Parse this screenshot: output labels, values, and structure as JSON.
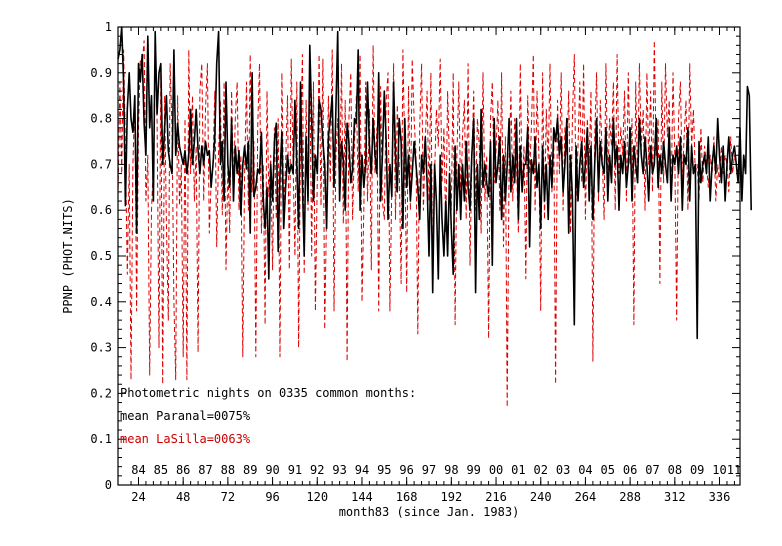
{
  "chart_data": {
    "type": "line",
    "xlabel": "month83 (since Jan. 1983)",
    "ylabel": "PPNP (PHOT.NITS)",
    "xlim": [
      13,
      347
    ],
    "ylim": [
      0,
      1
    ],
    "x_ticks": [
      "24",
      "48",
      "72",
      "96",
      "120",
      "144",
      "168",
      "192",
      "216",
      "240",
      "264",
      "288",
      "312",
      "336"
    ],
    "y_ticks": [
      "0",
      "0.1",
      "0.2",
      "0.3",
      "0.4",
      "0.5",
      "0.6",
      "0.7",
      "0.8",
      "0.9",
      "1"
    ],
    "year_labels": [
      {
        "label": "84",
        "x": 24
      },
      {
        "label": "85",
        "x": 36
      },
      {
        "label": "86",
        "x": 48
      },
      {
        "label": "87",
        "x": 60
      },
      {
        "label": "88",
        "x": 72
      },
      {
        "label": "89",
        "x": 84
      },
      {
        "label": "90",
        "x": 96
      },
      {
        "label": "91",
        "x": 108
      },
      {
        "label": "92",
        "x": 120
      },
      {
        "label": "93",
        "x": 132
      },
      {
        "label": "94",
        "x": 144
      },
      {
        "label": "95",
        "x": 156
      },
      {
        "label": "96",
        "x": 168
      },
      {
        "label": "97",
        "x": 180
      },
      {
        "label": "98",
        "x": 192
      },
      {
        "label": "99",
        "x": 204
      },
      {
        "label": "00",
        "x": 216
      },
      {
        "label": "01",
        "x": 228
      },
      {
        "label": "02",
        "x": 240
      },
      {
        "label": "03",
        "x": 252
      },
      {
        "label": "04",
        "x": 264
      },
      {
        "label": "05",
        "x": 276
      },
      {
        "label": "06",
        "x": 288
      },
      {
        "label": "07",
        "x": 300
      },
      {
        "label": "08",
        "x": 312
      },
      {
        "label": "09",
        "x": 324
      },
      {
        "label": "10",
        "x": 336
      },
      {
        "label": "11",
        "x": 348
      }
    ],
    "annotations": [
      {
        "text": "Photometric nights on 0335 common months:",
        "color": "#000000"
      },
      {
        "text": "mean Paranal=0075%",
        "color": "#000000"
      },
      {
        "text": "mean LaSilla=0063%",
        "color": "#cc0000"
      }
    ],
    "series": [
      {
        "style": "solid",
        "color": "#000000",
        "x_start": 13,
        "x_step": 1,
        "values": [
          0.93,
          0.95,
          1.0,
          0.88,
          0.61,
          0.82,
          0.9,
          0.8,
          0.77,
          0.85,
          0.55,
          0.92,
          0.88,
          0.94,
          0.79,
          0.72,
          0.98,
          0.78,
          0.85,
          0.62,
          0.99,
          0.81,
          0.9,
          0.92,
          0.7,
          0.78,
          0.85,
          0.73,
          0.7,
          0.68,
          0.95,
          0.72,
          0.79,
          0.74,
          0.72,
          0.7,
          0.73,
          0.68,
          0.72,
          0.82,
          0.7,
          0.75,
          0.82,
          0.73,
          0.68,
          0.74,
          0.7,
          0.75,
          0.72,
          0.73,
          0.65,
          0.7,
          0.76,
          0.92,
          0.99,
          0.7,
          0.75,
          0.62,
          0.88,
          0.7,
          0.65,
          0.8,
          0.62,
          0.74,
          0.68,
          0.73,
          0.59,
          0.7,
          0.74,
          0.69,
          0.75,
          0.55,
          0.9,
          0.63,
          0.65,
          0.69,
          0.68,
          0.77,
          0.62,
          0.56,
          0.65,
          0.45,
          0.7,
          0.62,
          0.75,
          0.79,
          0.51,
          0.68,
          0.77,
          0.56,
          0.65,
          0.72,
          0.68,
          0.7,
          0.68,
          0.84,
          0.7,
          0.56,
          0.88,
          0.66,
          0.5,
          0.76,
          0.62,
          0.96,
          0.8,
          0.62,
          0.72,
          0.68,
          0.84,
          0.82,
          0.75,
          0.7,
          0.56,
          0.76,
          0.8,
          0.85,
          0.65,
          0.82,
          0.99,
          0.62,
          0.75,
          0.71,
          0.6,
          0.79,
          0.75,
          0.66,
          0.69,
          0.8,
          0.79,
          0.95,
          0.6,
          0.72,
          0.65,
          0.7,
          0.88,
          0.74,
          0.68,
          0.8,
          0.72,
          0.68,
          0.9,
          0.62,
          0.72,
          0.86,
          0.75,
          0.58,
          0.7,
          0.63,
          0.88,
          0.72,
          0.64,
          0.8,
          0.75,
          0.56,
          0.8,
          0.65,
          0.72,
          0.62,
          0.68,
          0.75,
          0.7,
          0.65,
          0.58,
          0.72,
          0.68,
          0.76,
          0.66,
          0.5,
          0.7,
          0.42,
          0.7,
          0.62,
          0.45,
          0.72,
          0.58,
          0.5,
          0.62,
          0.5,
          0.68,
          0.56,
          0.46,
          0.74,
          0.6,
          0.7,
          0.58,
          0.7,
          0.62,
          0.75,
          0.65,
          0.6,
          0.72,
          0.8,
          0.42,
          0.7,
          0.58,
          0.82,
          0.65,
          0.7,
          0.66,
          0.63,
          0.75,
          0.48,
          0.8,
          0.66,
          0.7,
          0.76,
          0.58,
          0.72,
          0.62,
          0.7,
          0.8,
          0.64,
          0.72,
          0.66,
          0.8,
          0.58,
          0.74,
          0.64,
          0.7,
          0.7,
          0.78,
          0.52,
          0.71,
          0.68,
          0.76,
          0.65,
          0.7,
          0.56,
          0.74,
          0.62,
          0.7,
          0.58,
          0.72,
          0.65,
          0.78,
          0.75,
          0.8,
          0.72,
          0.76,
          0.64,
          0.7,
          0.8,
          0.55,
          0.72,
          0.63,
          0.35,
          0.74,
          0.62,
          0.7,
          0.75,
          0.65,
          0.7,
          0.78,
          0.62,
          0.74,
          0.58,
          0.7,
          0.8,
          0.64,
          0.75,
          0.7,
          0.68,
          0.78,
          0.62,
          0.72,
          0.66,
          0.8,
          0.7,
          0.74,
          0.6,
          0.72,
          0.68,
          0.75,
          0.65,
          0.7,
          0.78,
          0.62,
          0.74,
          0.7,
          0.66,
          0.8,
          0.72,
          0.68,
          0.76,
          0.7,
          0.62,
          0.74,
          0.68,
          0.7,
          0.8,
          0.65,
          0.72,
          0.68,
          0.75,
          0.7,
          0.66,
          0.78,
          0.62,
          0.72,
          0.7,
          0.74,
          0.68,
          0.76,
          0.6,
          0.72,
          0.7,
          0.78,
          0.62,
          0.74,
          0.68,
          0.7,
          0.32,
          0.75,
          0.66,
          0.7,
          0.72,
          0.68,
          0.76,
          0.62,
          0.7,
          0.74,
          0.68,
          0.8,
          0.72,
          0.66,
          0.74,
          0.62,
          0.7,
          0.76,
          0.68,
          0.72,
          0.74,
          0.7,
          0.66,
          0.78,
          0.62,
          0.72,
          0.68,
          0.87,
          0.85,
          0.6
        ]
      },
      {
        "style": "dashed",
        "color": "#dd0000",
        "x_start": 13,
        "x_step": 1,
        "values": [
          0.63,
          0.88,
          0.68,
          0.95,
          0.74,
          0.46,
          0.7,
          0.23,
          0.7,
          0.85,
          0.38,
          0.78,
          0.93,
          0.92,
          0.97,
          0.62,
          0.72,
          0.24,
          0.6,
          0.7,
          0.96,
          0.79,
          0.3,
          0.9,
          0.22,
          0.85,
          0.57,
          0.36,
          0.92,
          0.78,
          0.4,
          0.23,
          0.85,
          0.61,
          0.7,
          0.28,
          0.8,
          0.23,
          0.95,
          0.68,
          0.85,
          0.62,
          0.74,
          0.29,
          0.86,
          0.92,
          0.62,
          0.82,
          0.92,
          0.55,
          0.66,
          0.7,
          0.86,
          0.52,
          0.73,
          0.84,
          0.59,
          0.88,
          0.47,
          0.7,
          0.55,
          0.86,
          0.65,
          0.8,
          0.88,
          0.6,
          0.72,
          0.28,
          0.68,
          0.88,
          0.6,
          0.94,
          0.64,
          0.75,
          0.28,
          0.78,
          0.92,
          0.55,
          0.7,
          0.35,
          0.86,
          0.63,
          0.72,
          0.47,
          0.78,
          0.58,
          0.8,
          0.28,
          0.9,
          0.61,
          0.7,
          0.85,
          0.47,
          0.93,
          0.7,
          0.5,
          0.88,
          0.3,
          0.74,
          0.94,
          0.46,
          0.84,
          0.6,
          0.9,
          0.5,
          0.88,
          0.38,
          0.67,
          0.94,
          0.61,
          0.93,
          0.34,
          0.6,
          0.85,
          0.66,
          0.95,
          0.38,
          0.72,
          0.8,
          0.62,
          0.92,
          0.57,
          0.84,
          0.27,
          0.8,
          0.9,
          0.58,
          0.75,
          0.85,
          0.64,
          0.94,
          0.4,
          0.6,
          0.88,
          0.62,
          0.82,
          0.47,
          0.96,
          0.68,
          0.78,
          0.38,
          0.87,
          0.62,
          0.58,
          0.84,
          0.9,
          0.38,
          0.65,
          0.92,
          0.58,
          0.83,
          0.7,
          0.44,
          0.95,
          0.72,
          0.42,
          0.87,
          0.6,
          0.93,
          0.8,
          0.72,
          0.33,
          0.78,
          0.92,
          0.6,
          0.75,
          0.86,
          0.62,
          0.9,
          0.45,
          0.68,
          0.82,
          0.74,
          0.93,
          0.66,
          0.78,
          0.55,
          0.86,
          0.7,
          0.6,
          0.9,
          0.35,
          0.72,
          0.88,
          0.62,
          0.76,
          0.84,
          0.58,
          0.92,
          0.48,
          0.7,
          0.86,
          0.6,
          0.8,
          0.74,
          0.55,
          0.9,
          0.62,
          0.72,
          0.32,
          0.8,
          0.88,
          0.66,
          0.73,
          0.84,
          0.6,
          0.9,
          0.52,
          0.76,
          0.17,
          0.7,
          0.86,
          0.62,
          0.8,
          0.7,
          0.55,
          0.92,
          0.64,
          0.74,
          0.45,
          0.85,
          0.68,
          0.78,
          0.94,
          0.6,
          0.86,
          0.72,
          0.38,
          0.9,
          0.58,
          0.82,
          0.7,
          0.92,
          0.64,
          0.76,
          0.22,
          0.84,
          0.68,
          0.9,
          0.6,
          0.78,
          0.72,
          0.86,
          0.55,
          0.8,
          0.94,
          0.62,
          0.74,
          0.88,
          0.66,
          0.92,
          0.58,
          0.8,
          0.7,
          0.86,
          0.27,
          0.76,
          0.9,
          0.62,
          0.84,
          0.72,
          0.58,
          0.92,
          0.66,
          0.8,
          0.74,
          0.88,
          0.6,
          0.94,
          0.68,
          0.78,
          0.72,
          0.86,
          0.62,
          0.9,
          0.7,
          0.8,
          0.35,
          0.88,
          0.66,
          0.92,
          0.74,
          0.82,
          0.6,
          0.9,
          0.7,
          0.86,
          0.64,
          0.97,
          0.72,
          0.8,
          0.44,
          0.88,
          0.66,
          0.92,
          0.76,
          0.84,
          0.62,
          0.9,
          0.72,
          0.36,
          0.8,
          0.88,
          0.66,
          0.76,
          0.84,
          0.6,
          0.92,
          0.74,
          0.82,
          0.68,
          0.7,
          0.62,
          0.78,
          0.66,
          0.74,
          0.7,
          0.65,
          0.72,
          0.68,
          0.76,
          0.62,
          0.7,
          0.66,
          0.74,
          0.68,
          0.72,
          0.7,
          0.64,
          0.76,
          0.68,
          0.72,
          0.7,
          0.66,
          0.74,
          0.62
        ]
      }
    ]
  }
}
